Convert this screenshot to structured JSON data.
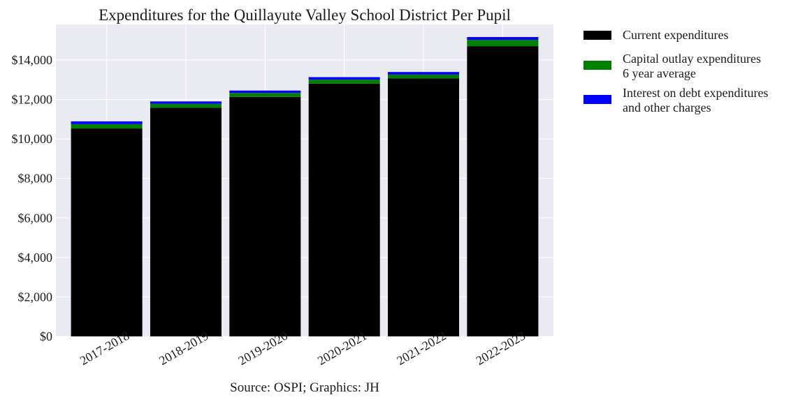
{
  "chart_data": {
    "type": "bar",
    "stacked": true,
    "title": "Expenditures for the Quillayute Valley School District Per Pupil",
    "caption": "Source: OSPI; Graphics: JH",
    "xlabel": "",
    "ylabel": "",
    "categories": [
      "2017-2018",
      "2018-2019",
      "2019-2020",
      "2020-2021",
      "2021-2022",
      "2022-2023"
    ],
    "series": [
      {
        "name": "Current expenditures",
        "color": "#000000",
        "values": [
          10530,
          11580,
          12130,
          12800,
          13060,
          14700
        ]
      },
      {
        "name": "Capital outlay expenditures\n6 year average",
        "color": "#008000",
        "values": [
          220,
          200,
          200,
          200,
          200,
          320
        ]
      },
      {
        "name": "Interest on debt expenditures\nand other charges",
        "color": "#0000ff",
        "values": [
          140,
          120,
          120,
          130,
          130,
          140
        ]
      }
    ],
    "ylim": [
      0,
      15800
    ],
    "yticks": [
      0,
      2000,
      4000,
      6000,
      8000,
      10000,
      12000,
      14000
    ],
    "ytick_labels": [
      "$0",
      "$2,000",
      "$4,000",
      "$6,000",
      "$8,000",
      "$10,000",
      "$12,000",
      "$14,000"
    ],
    "grid": true,
    "legend_position": "outside-right"
  }
}
